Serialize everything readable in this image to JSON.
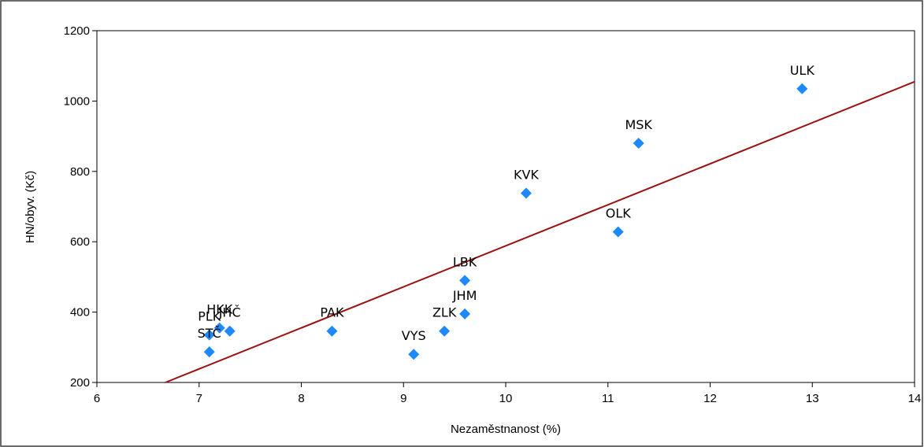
{
  "colors": {
    "point": "#1e88ff",
    "regression": "#9b1010",
    "axis": "#000000",
    "frame": "#3a3a3a"
  },
  "chart_data": {
    "type": "scatter",
    "title": "",
    "xlabel": "Nezaměstnanost (%)",
    "ylabel": "HN/obyv. (Kč)",
    "xlim": [
      6,
      14
    ],
    "ylim": [
      200,
      1200
    ],
    "xticks": [
      6,
      7,
      8,
      9,
      10,
      11,
      12,
      13,
      14
    ],
    "yticks": [
      200,
      400,
      600,
      800,
      1000,
      1200
    ],
    "grid": false,
    "legend": "none",
    "marker": "diamond",
    "points": [
      {
        "label": "ULK",
        "x": 12.9,
        "y": 1035
      },
      {
        "label": "MSK",
        "x": 11.3,
        "y": 880
      },
      {
        "label": "KVK",
        "x": 10.2,
        "y": 738
      },
      {
        "label": "OLK",
        "x": 11.1,
        "y": 628
      },
      {
        "label": "LBK",
        "x": 9.6,
        "y": 490
      },
      {
        "label": "JHM",
        "x": 9.6,
        "y": 395
      },
      {
        "label": "ZLK",
        "x": 9.4,
        "y": 346
      },
      {
        "label": "VYS",
        "x": 9.1,
        "y": 280
      },
      {
        "label": "PAK",
        "x": 8.3,
        "y": 346
      },
      {
        "label": "HKK",
        "x": 7.2,
        "y": 355
      },
      {
        "label": "JHČ",
        "x": 7.3,
        "y": 346
      },
      {
        "label": "PLK",
        "x": 7.1,
        "y": 335
      },
      {
        "label": "STČ",
        "x": 7.1,
        "y": 287
      }
    ],
    "regression_line": {
      "x": [
        6.67,
        14
      ],
      "y": [
        200,
        1055
      ]
    }
  }
}
